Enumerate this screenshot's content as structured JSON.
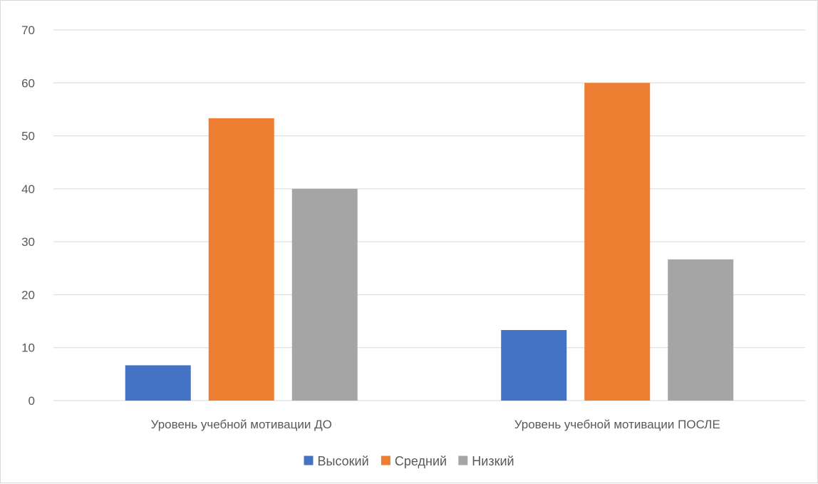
{
  "chart_data": {
    "type": "bar",
    "title": "",
    "xlabel": "",
    "ylabel": "",
    "categories": [
      "Уровень учебной мотивации ДО",
      "Уровень учебной мотивации ПОСЛЕ"
    ],
    "series": [
      {
        "name": "Высокий",
        "color": "#4472c4",
        "values": [
          6.67,
          13.33
        ]
      },
      {
        "name": "Средний",
        "color": "#ed7d31",
        "values": [
          53.33,
          60
        ]
      },
      {
        "name": "Низкий",
        "color": "#a5a5a5",
        "values": [
          40,
          26.67
        ]
      }
    ],
    "ylim": [
      0,
      70
    ],
    "yticks": [
      "0",
      "10",
      "20",
      "30",
      "40",
      "50",
      "60",
      "70"
    ],
    "grid": true,
    "legend_position": "bottom"
  }
}
